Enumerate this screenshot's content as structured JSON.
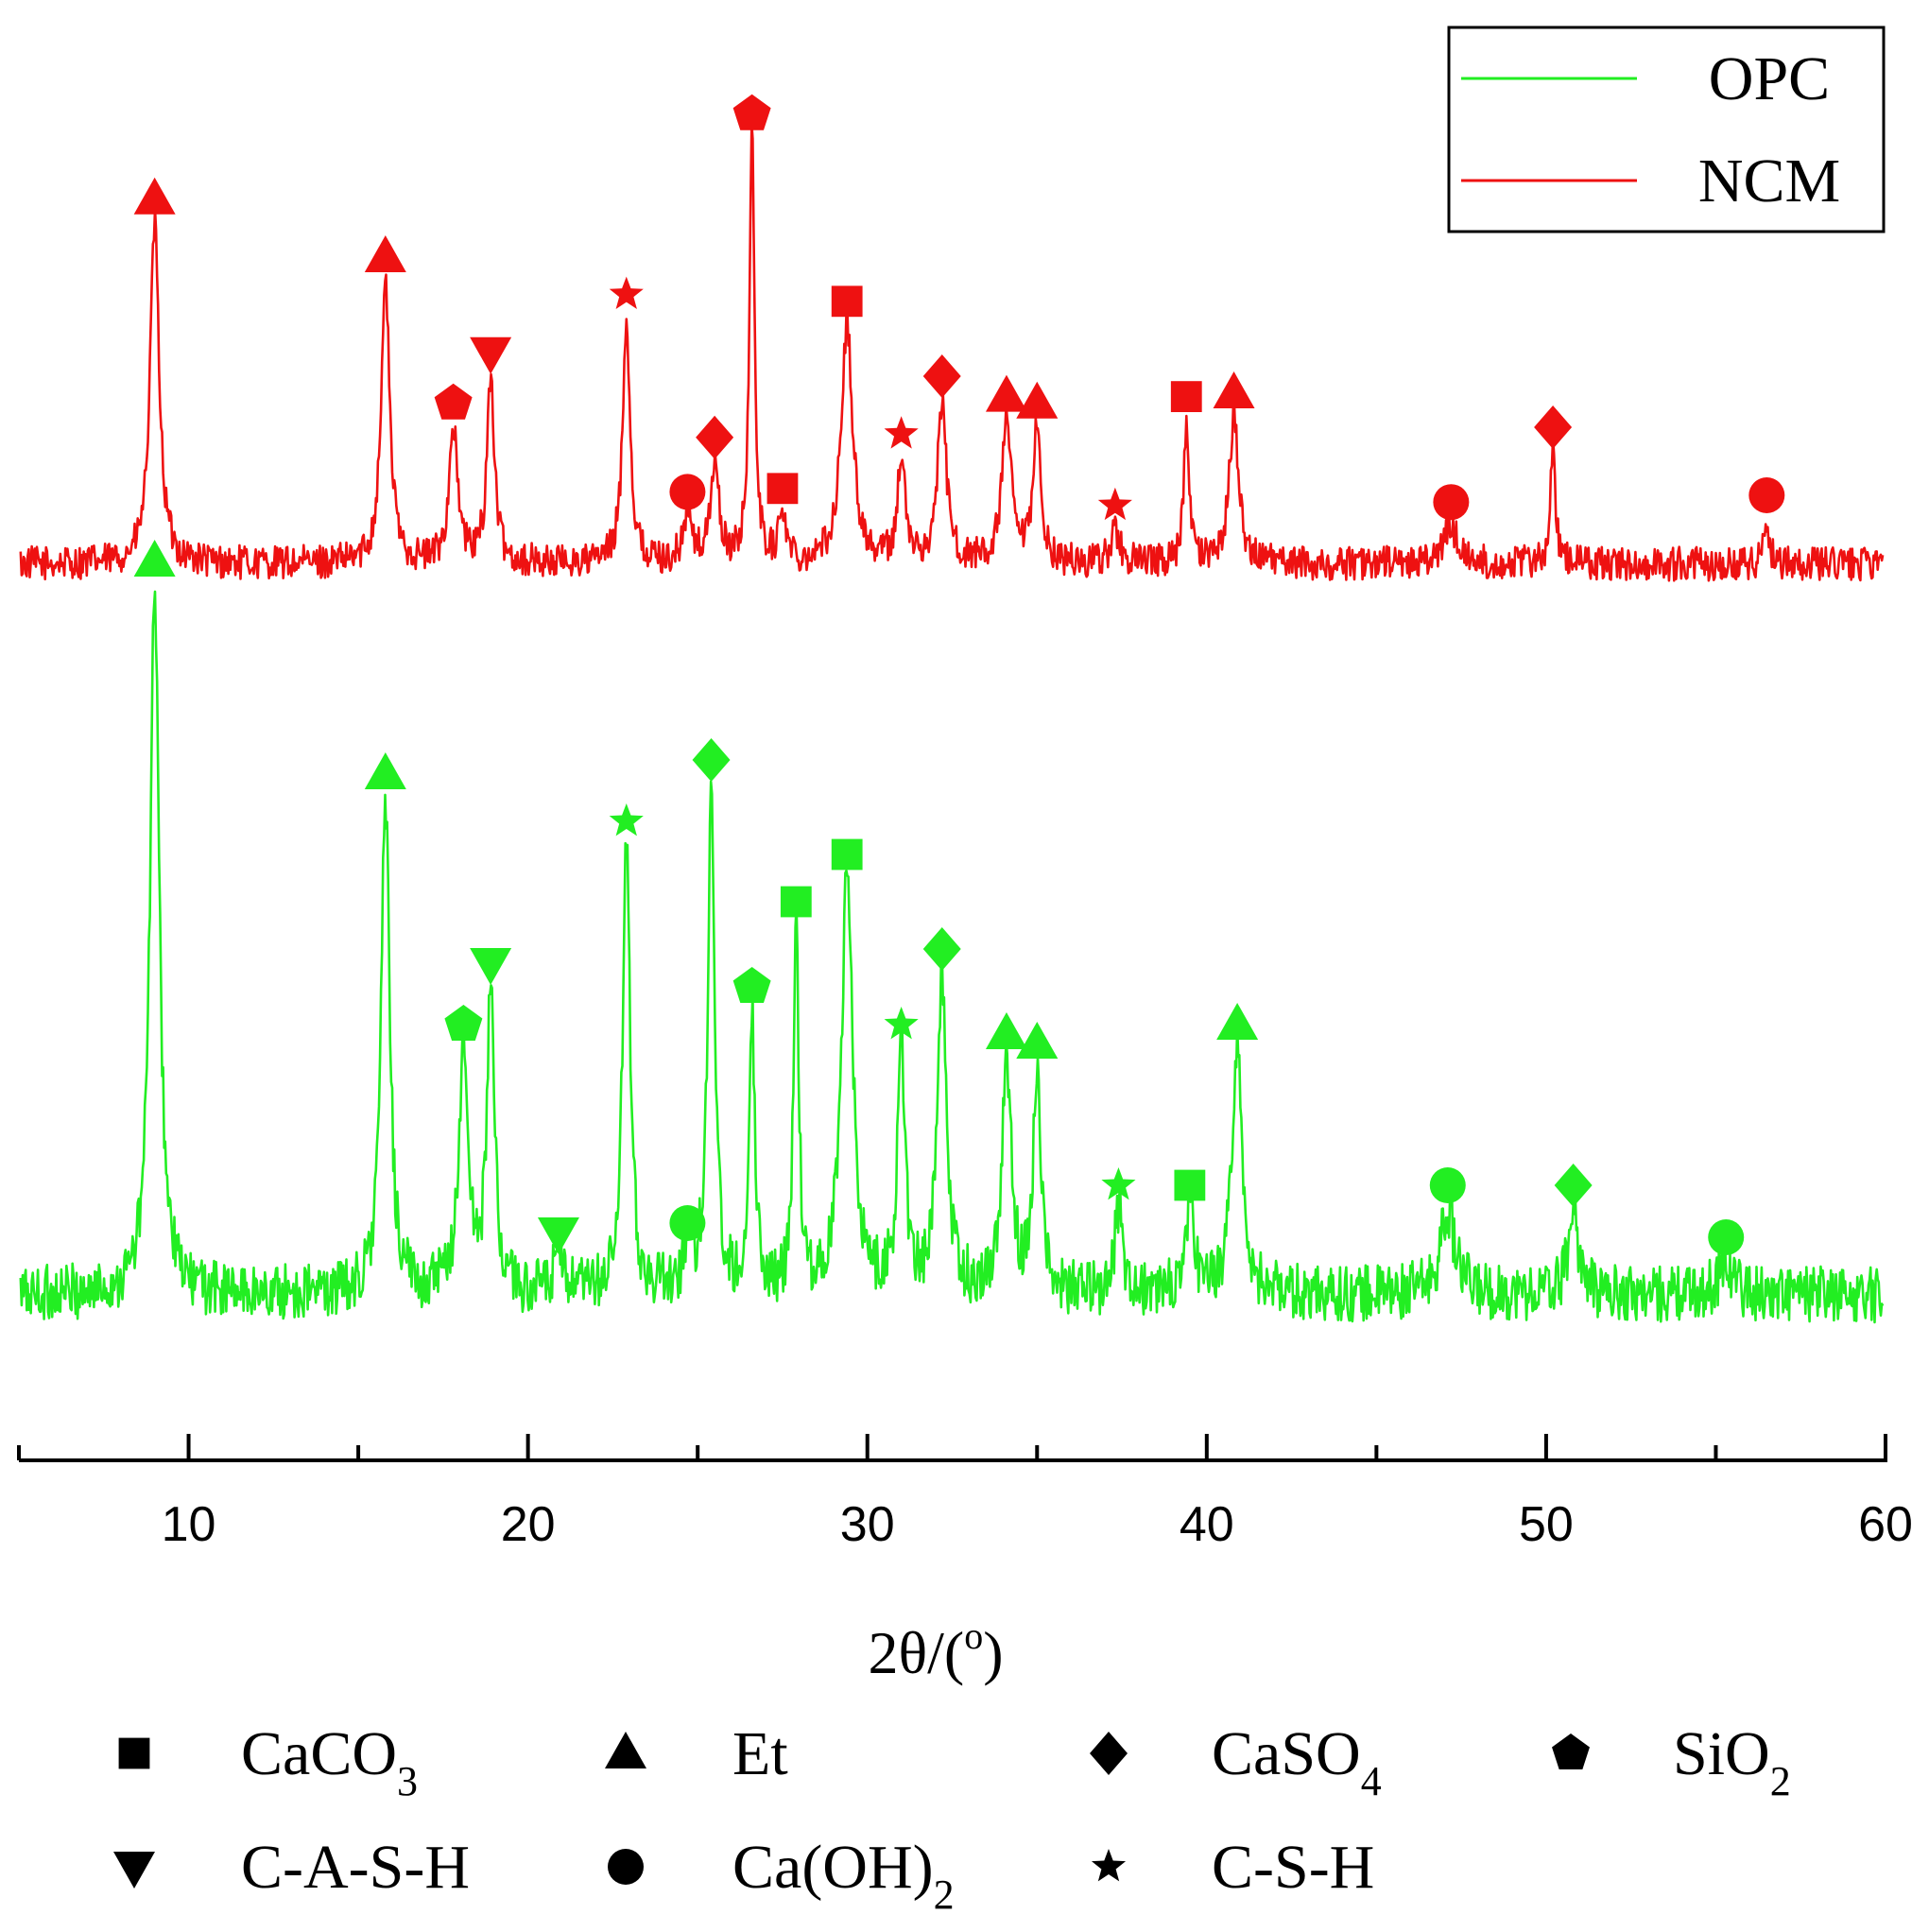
{
  "chart_data": {
    "type": "line",
    "title": "",
    "xlabel": "2θ/(",
    "xlabel_sup": "o",
    "xlabel_suffix": ")",
    "ylabel": "",
    "xlim": [
      5,
      60
    ],
    "x_ticks": [
      10,
      20,
      30,
      40,
      50,
      60
    ],
    "legend_lines": [
      {
        "name": "OPC",
        "color": "#22ee22"
      },
      {
        "name": "NCM",
        "color": "#ee1111"
      }
    ],
    "series": [
      {
        "name": "NCM",
        "color": "#ee1111",
        "baseline": 12,
        "noise": 5,
        "peaks": [
          {
            "x": 9.0,
            "h": 100,
            "w": 0.16,
            "phase": "Et"
          },
          {
            "x": 15.8,
            "h": 83,
            "w": 0.15,
            "phase": "Et"
          },
          {
            "x": 17.8,
            "h": 40,
            "w": 0.15,
            "phase": "SiO2"
          },
          {
            "x": 18.9,
            "h": 55,
            "w": 0.13,
            "phase": "C-A-S-H"
          },
          {
            "x": 22.9,
            "h": 72,
            "w": 0.13,
            "phase": "C-S-H"
          },
          {
            "x": 24.7,
            "h": 14,
            "w": 0.15,
            "phase": "Ca(OH)2"
          },
          {
            "x": 25.5,
            "h": 30,
            "w": 0.14,
            "phase": "CaSO4"
          },
          {
            "x": 26.6,
            "h": 125,
            "w": 0.09,
            "phase": "SiO2"
          },
          {
            "x": 27.5,
            "h": 15,
            "w": 0.12,
            "phase": "CaCO3"
          },
          {
            "x": 29.4,
            "h": 70,
            "w": 0.2,
            "phase": "CaCO3"
          },
          {
            "x": 31.0,
            "h": 31,
            "w": 0.13,
            "phase": "C-S-H"
          },
          {
            "x": 32.2,
            "h": 48,
            "w": 0.15,
            "phase": "CaSO4"
          },
          {
            "x": 34.1,
            "h": 42,
            "w": 0.16,
            "phase": "Et"
          },
          {
            "x": 35.0,
            "h": 40,
            "w": 0.13,
            "phase": "Et"
          },
          {
            "x": 37.3,
            "h": 10,
            "w": 0.15,
            "phase": "C-S-H"
          },
          {
            "x": 39.4,
            "h": 42,
            "w": 0.09,
            "phase": "CaCO3"
          },
          {
            "x": 40.8,
            "h": 43,
            "w": 0.17,
            "phase": "Et"
          },
          {
            "x": 47.2,
            "h": 11,
            "w": 0.25,
            "phase": "Ca(OH)2"
          },
          {
            "x": 50.2,
            "h": 33,
            "w": 0.09,
            "phase": "CaSO4"
          },
          {
            "x": 56.5,
            "h": 13,
            "w": 0.1,
            "phase": "Ca(OH)2"
          }
        ]
      },
      {
        "name": "OPC",
        "color": "#22ee22",
        "baseline": 12,
        "noise": 6,
        "peaks": [
          {
            "x": 9.0,
            "h": 150,
            "w": 0.16,
            "phase": "Et"
          },
          {
            "x": 15.8,
            "h": 105,
            "w": 0.15,
            "phase": "Et"
          },
          {
            "x": 18.1,
            "h": 52,
            "w": 0.16,
            "phase": "SiO2"
          },
          {
            "x": 18.9,
            "h": 65,
            "w": 0.13,
            "phase": "C-A-S-H"
          },
          {
            "x": 20.9,
            "h": 8,
            "w": 0.15,
            "phase": "C-A-S-H"
          },
          {
            "x": 22.9,
            "h": 95,
            "w": 0.13,
            "phase": "C-S-H"
          },
          {
            "x": 24.7,
            "h": 10,
            "w": 0.15,
            "phase": "Ca(OH)2"
          },
          {
            "x": 25.4,
            "h": 108,
            "w": 0.12,
            "phase": "CaSO4"
          },
          {
            "x": 26.6,
            "h": 60,
            "w": 0.1,
            "phase": "SiO2"
          },
          {
            "x": 27.9,
            "h": 78,
            "w": 0.09,
            "phase": "CaCO3"
          },
          {
            "x": 29.4,
            "h": 88,
            "w": 0.2,
            "phase": "CaCO3"
          },
          {
            "x": 31.0,
            "h": 52,
            "w": 0.13,
            "phase": "C-S-H"
          },
          {
            "x": 32.2,
            "h": 68,
            "w": 0.16,
            "phase": "CaSO4"
          },
          {
            "x": 34.1,
            "h": 50,
            "w": 0.16,
            "phase": "Et"
          },
          {
            "x": 35.0,
            "h": 48,
            "w": 0.13,
            "phase": "Et"
          },
          {
            "x": 37.4,
            "h": 18,
            "w": 0.14,
            "phase": "C-S-H"
          },
          {
            "x": 39.5,
            "h": 18,
            "w": 0.14,
            "phase": "CaCO3"
          },
          {
            "x": 40.9,
            "h": 52,
            "w": 0.18,
            "phase": "Et"
          },
          {
            "x": 47.1,
            "h": 18,
            "w": 0.25,
            "phase": "Ca(OH)2"
          },
          {
            "x": 50.8,
            "h": 18,
            "w": 0.18,
            "phase": "CaSO4"
          },
          {
            "x": 55.3,
            "h": 7,
            "w": 0.25,
            "phase": "Ca(OH)2"
          }
        ]
      }
    ],
    "phase_legend": [
      {
        "symbol": "square",
        "label": "CaCO",
        "sub": "3"
      },
      {
        "symbol": "triangle-up",
        "label": "Et",
        "sub": ""
      },
      {
        "symbol": "diamond",
        "label": "CaSO",
        "sub": "4"
      },
      {
        "symbol": "pentagon",
        "label": "SiO",
        "sub": "2"
      },
      {
        "symbol": "triangle-down",
        "label": "C-A-S-H",
        "sub": ""
      },
      {
        "symbol": "circle",
        "label": "Ca(OH)",
        "sub": "2"
      },
      {
        "symbol": "star",
        "label": "C-S-H",
        "sub": ""
      }
    ],
    "phase_symbols": {
      "CaCO3": "square",
      "Et": "triangle-up",
      "CaSO4": "diamond",
      "SiO2": "pentagon",
      "C-A-S-H": "triangle-down",
      "Ca(OH)2": "circle",
      "C-S-H": "star"
    }
  }
}
